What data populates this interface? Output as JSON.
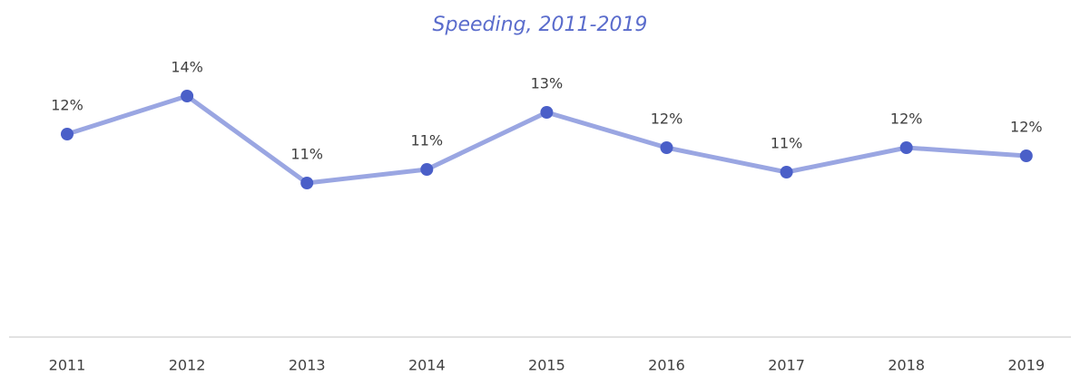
{
  "chart_data": {
    "type": "line",
    "title": "Speeding, 2011-2019",
    "categories": [
      "2011",
      "2012",
      "2013",
      "2014",
      "2015",
      "2016",
      "2017",
      "2018",
      "2019"
    ],
    "series": [
      {
        "name": "Speeding",
        "color": "#4a5fc8",
        "line_color": "#9aa6e2",
        "values": [
          12.4,
          13.8,
          10.6,
          11.1,
          13.2,
          11.9,
          11.0,
          11.9,
          11.6
        ],
        "value_labels": [
          "12%",
          "14%",
          "11%",
          "11%",
          "13%",
          "12%",
          "11%",
          "12%",
          "12%"
        ]
      }
    ],
    "ylim": [
      5,
      16
    ],
    "grid": false
  }
}
